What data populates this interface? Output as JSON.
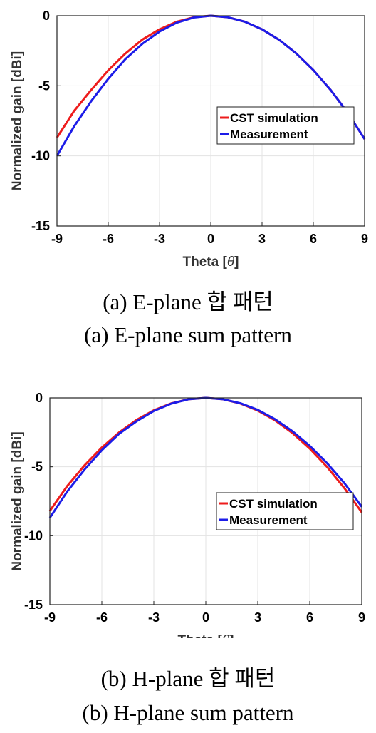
{
  "captions": {
    "a_korean": "(a) E-plane 합 패턴",
    "a_english": "(a) E-plane sum pattern",
    "b_korean": "(b) H-plane 합 패턴",
    "b_english": "(b) H-plane sum pattern"
  },
  "colors": {
    "sim": "#ee1c1c",
    "meas": "#1c1ce8",
    "grid": "#e3e3e3"
  },
  "chart_data": [
    {
      "type": "line",
      "xlabel": "Theta [θ]",
      "ylabel": "Normalized gain [dBi]",
      "xlim": [
        -9,
        9
      ],
      "ylim": [
        -15,
        0
      ],
      "xticks": [
        -9,
        -6,
        -3,
        0,
        3,
        6,
        9
      ],
      "yticks": [
        0,
        -5,
        -10,
        -15
      ],
      "grid": true,
      "legend": "center-right",
      "series": [
        {
          "name": "CST simulation",
          "x": [
            -9,
            -8,
            -7,
            -6,
            -5,
            -4,
            -3,
            -2,
            -1,
            0,
            1,
            2,
            3,
            4,
            5,
            6,
            7,
            8,
            9
          ],
          "y": [
            -8.7,
            -6.8,
            -5.3,
            -3.9,
            -2.7,
            -1.7,
            -0.97,
            -0.43,
            -0.11,
            0,
            -0.11,
            -0.43,
            -0.97,
            -1.72,
            -2.69,
            -3.88,
            -5.28,
            -6.9,
            -8.8
          ]
        },
        {
          "name": "Measurement",
          "x": [
            -9,
            -8,
            -7,
            -6,
            -5,
            -4,
            -3,
            -2,
            -1,
            0,
            1,
            2,
            3,
            4,
            5,
            6,
            7,
            8,
            9
          ],
          "y": [
            -10.0,
            -7.9,
            -6.1,
            -4.5,
            -3.1,
            -2.0,
            -1.13,
            -0.5,
            -0.13,
            0,
            -0.11,
            -0.43,
            -0.97,
            -1.72,
            -2.69,
            -3.88,
            -5.28,
            -6.9,
            -8.8
          ]
        }
      ]
    },
    {
      "type": "line",
      "xlabel": "Theta [θ]",
      "ylabel": "Normalized gain [dBi]",
      "xlim": [
        -9,
        9
      ],
      "ylim": [
        -15,
        0
      ],
      "xticks": [
        -9,
        -6,
        -3,
        0,
        3,
        6,
        9
      ],
      "yticks": [
        0,
        -5,
        -10,
        -15
      ],
      "grid": true,
      "legend": "center-right",
      "series": [
        {
          "name": "CST simulation",
          "x": [
            -9,
            -8,
            -7,
            -6,
            -5,
            -4,
            -3,
            -2,
            -1,
            0,
            1,
            2,
            3,
            4,
            5,
            6,
            7,
            8,
            9
          ],
          "y": [
            -8.2,
            -6.4,
            -4.9,
            -3.6,
            -2.5,
            -1.6,
            -0.9,
            -0.4,
            -0.1,
            0,
            -0.1,
            -0.41,
            -0.92,
            -1.63,
            -2.55,
            -3.68,
            -5.01,
            -6.55,
            -8.3
          ]
        },
        {
          "name": "Measurement",
          "x": [
            -9,
            -8,
            -7,
            -6,
            -5,
            -4,
            -3,
            -2,
            -1,
            0,
            1,
            2,
            3,
            4,
            5,
            6,
            7,
            8,
            9
          ],
          "y": [
            -8.7,
            -6.8,
            -5.2,
            -3.8,
            -2.6,
            -1.7,
            -0.95,
            -0.42,
            -0.1,
            0,
            -0.1,
            -0.39,
            -0.87,
            -1.55,
            -2.42,
            -3.48,
            -4.74,
            -6.19,
            -7.9
          ]
        }
      ]
    }
  ]
}
